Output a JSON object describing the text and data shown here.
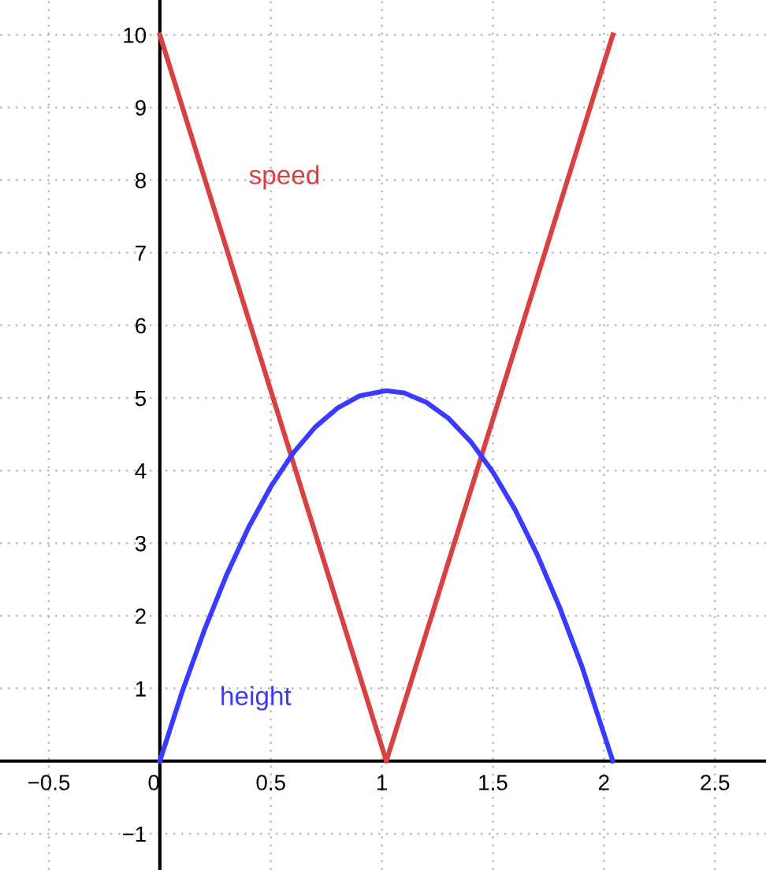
{
  "chart_data": {
    "type": "line",
    "series": [
      {
        "name": "speed",
        "color": "#d94040",
        "x": [
          0,
          1.02,
          2.04
        ],
        "values": [
          10,
          0,
          10
        ]
      },
      {
        "name": "height",
        "color": "#3b3bff",
        "x": [
          0,
          0.1,
          0.2,
          0.3,
          0.4,
          0.5,
          0.6,
          0.7,
          0.8,
          0.9,
          1.02,
          1.1,
          1.2,
          1.3,
          1.4,
          1.5,
          1.6,
          1.7,
          1.8,
          1.9,
          2.04
        ],
        "values": [
          0,
          0.95,
          1.8,
          2.56,
          3.22,
          3.78,
          4.24,
          4.6,
          4.86,
          5.03,
          5.1,
          5.07,
          4.94,
          4.72,
          4.4,
          3.98,
          3.46,
          2.84,
          2.12,
          1.31,
          0
        ]
      }
    ],
    "xlim": [
      -0.72,
      2.73
    ],
    "ylim": [
      -1.5,
      10.48
    ],
    "xticks": [
      {
        "value": -0.5,
        "label": "−0.5"
      },
      0,
      0.5,
      1,
      1.5,
      2,
      2.5
    ],
    "yticks": [
      {
        "value": -1,
        "label": "−1"
      },
      {
        "value": 0,
        "label": null
      },
      1,
      2,
      3,
      4,
      5,
      6,
      7,
      8,
      9,
      10
    ],
    "grid": true,
    "marker": "none",
    "line_style": "solid"
  }
}
